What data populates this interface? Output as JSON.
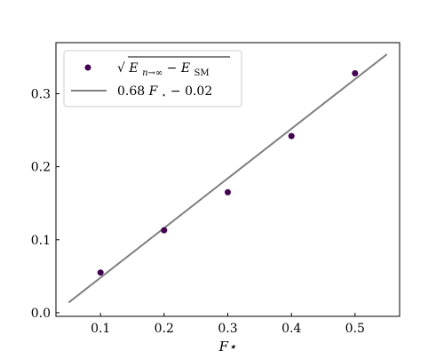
{
  "chart_data": {
    "type": "scatter",
    "xlabel": "F⋆",
    "ylabel": "",
    "xlim": [
      0.03,
      0.57
    ],
    "ylim": [
      -0.005,
      0.37
    ],
    "x_ticks": [
      0.1,
      0.2,
      0.3,
      0.4,
      0.5
    ],
    "x_tick_labels": [
      "0.1",
      "0.2",
      "0.3",
      "0.4",
      "0.5"
    ],
    "y_ticks": [
      0.0,
      0.1,
      0.2,
      0.3
    ],
    "y_tick_labels": [
      "0.0",
      "0.1",
      "0.2",
      "0.3"
    ],
    "grid": false,
    "legend_position": "top-left",
    "series": [
      {
        "name": "√(E_{n→∞} − E_SM)",
        "kind": "scatter",
        "color": "#440154",
        "x": [
          0.1,
          0.2,
          0.3,
          0.4,
          0.5
        ],
        "y": [
          0.055,
          0.113,
          0.165,
          0.242,
          0.328
        ]
      },
      {
        "name": "0.68F⋆ − 0.02",
        "kind": "line",
        "color": "#808080",
        "slope": 0.68,
        "intercept": -0.02,
        "x": [
          0.05,
          0.55
        ],
        "y": [
          0.014,
          0.354
        ]
      }
    ]
  },
  "legend": {
    "scatter_label": {
      "sqrt": "√",
      "E": "E",
      "sub1": "n→∞",
      "minus": " − ",
      "E2": "E",
      "sub2": "SM"
    },
    "line_label": {
      "coef": "0.68",
      "F": "F",
      "star": "⋆",
      "rest": " − 0.02"
    }
  }
}
